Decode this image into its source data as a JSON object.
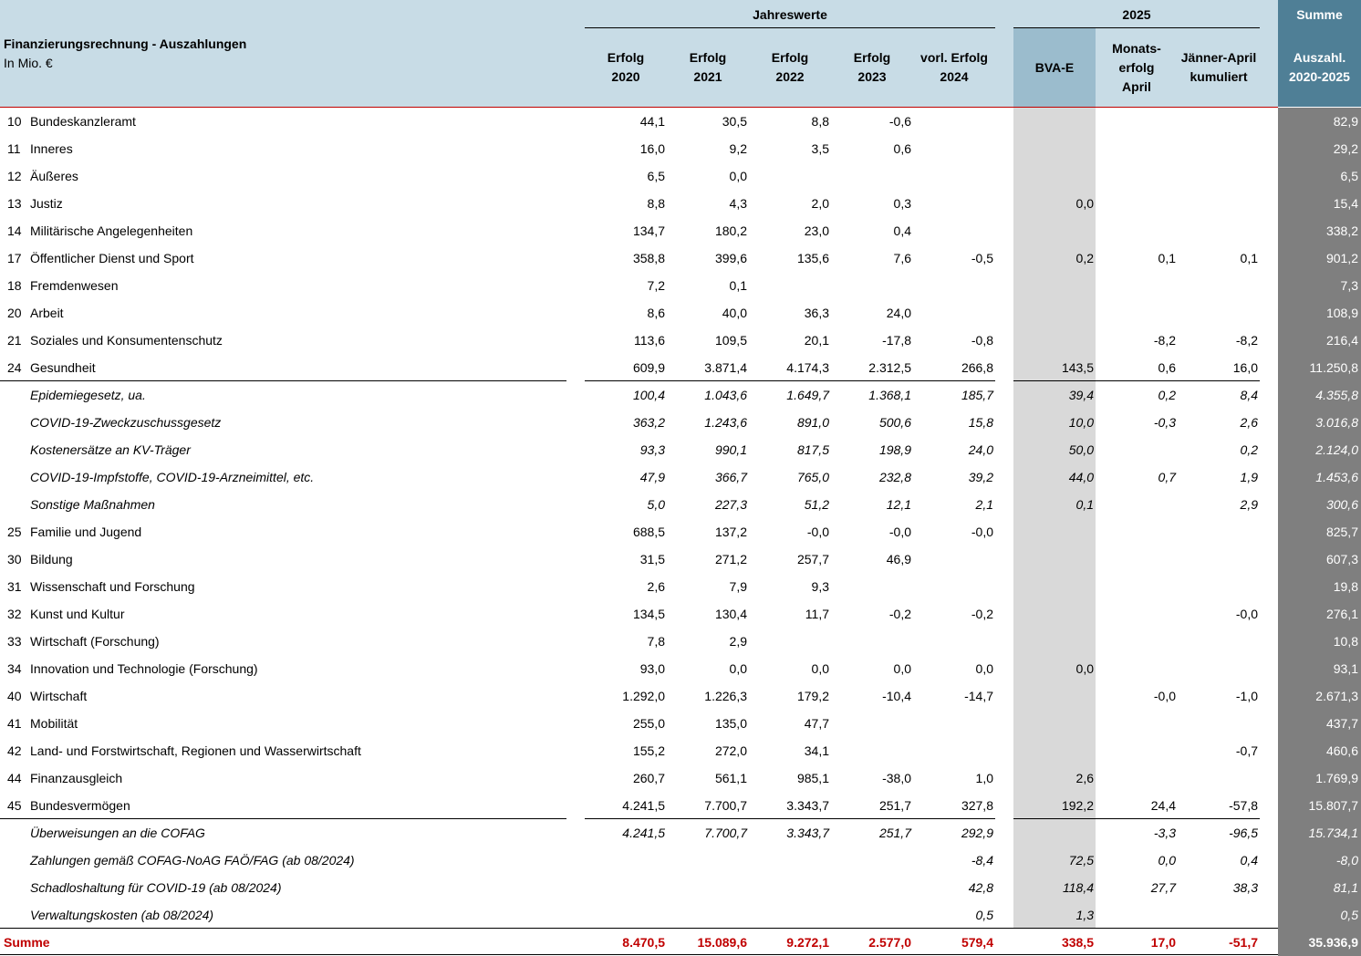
{
  "header": {
    "title": "Finanzierungsrechnung - Auszahlungen",
    "unit": "In Mio. €",
    "group_jahreswerte": "Jahreswerte",
    "group_2025": "2025",
    "group_summe": "Summe",
    "columns": [
      "Erfolg\n2020",
      "Erfolg\n2021",
      "Erfolg\n2022",
      "Erfolg\n2023",
      "vorl. Erfolg\n2024",
      "BVA-E",
      "Monats-\nerfolg\nApril",
      "Jänner-April\nkumuliert",
      "Auszahl.\n2020-2025"
    ]
  },
  "rows": [
    {
      "num": "10",
      "label": "Bundeskanzleramt",
      "values": [
        "44,1",
        "30,5",
        "8,8",
        "-0,6",
        "",
        "",
        "",
        "",
        "82,9"
      ]
    },
    {
      "num": "11",
      "label": "Inneres",
      "values": [
        "16,0",
        "9,2",
        "3,5",
        "0,6",
        "",
        "",
        "",
        "",
        "29,2"
      ]
    },
    {
      "num": "12",
      "label": "Äußeres",
      "values": [
        "6,5",
        "0,0",
        "",
        "",
        "",
        "",
        "",
        "",
        "6,5"
      ]
    },
    {
      "num": "13",
      "label": "Justiz",
      "values": [
        "8,8",
        "4,3",
        "2,0",
        "0,3",
        "",
        "0,0",
        "",
        "",
        "15,4"
      ]
    },
    {
      "num": "14",
      "label": "Militärische Angelegenheiten",
      "values": [
        "134,7",
        "180,2",
        "23,0",
        "0,4",
        "",
        "",
        "",
        "",
        "338,2"
      ]
    },
    {
      "num": "17",
      "label": "Öffentlicher Dienst und Sport",
      "values": [
        "358,8",
        "399,6",
        "135,6",
        "7,6",
        "-0,5",
        "0,2",
        "0,1",
        "0,1",
        "901,2"
      ]
    },
    {
      "num": "18",
      "label": "Fremdenwesen",
      "values": [
        "7,2",
        "0,1",
        "",
        "",
        "",
        "",
        "",
        "",
        "7,3"
      ]
    },
    {
      "num": "20",
      "label": "Arbeit",
      "values": [
        "8,6",
        "40,0",
        "36,3",
        "24,0",
        "",
        "",
        "",
        "",
        "108,9"
      ]
    },
    {
      "num": "21",
      "label": "Soziales und Konsumentenschutz",
      "values": [
        "113,6",
        "109,5",
        "20,1",
        "-17,8",
        "-0,8",
        "",
        "-8,2",
        "-8,2",
        "216,4"
      ]
    },
    {
      "num": "24",
      "label": "Gesundheit",
      "values": [
        "609,9",
        "3.871,4",
        "4.174,3",
        "2.312,5",
        "266,8",
        "143,5",
        "0,6",
        "16,0",
        "11.250,8"
      ]
    },
    {
      "num": "",
      "label": "Epidemiegesetz, ua.",
      "sub": true,
      "values": [
        "100,4",
        "1.043,6",
        "1.649,7",
        "1.368,1",
        "185,7",
        "39,4",
        "0,2",
        "8,4",
        "4.355,8"
      ]
    },
    {
      "num": "",
      "label": "COVID-19-Zweckzuschussgesetz",
      "sub": true,
      "values": [
        "363,2",
        "1.243,6",
        "891,0",
        "500,6",
        "15,8",
        "10,0",
        "-0,3",
        "2,6",
        "3.016,8"
      ]
    },
    {
      "num": "",
      "label": "Kostenersätze an KV-Träger",
      "sub": true,
      "values": [
        "93,3",
        "990,1",
        "817,5",
        "198,9",
        "24,0",
        "50,0",
        "",
        "0,2",
        "2.124,0"
      ]
    },
    {
      "num": "",
      "label": "COVID-19-Impfstoffe, COVID-19-Arzneimittel, etc.",
      "sub": true,
      "values": [
        "47,9",
        "366,7",
        "765,0",
        "232,8",
        "39,2",
        "44,0",
        "0,7",
        "1,9",
        "1.453,6"
      ]
    },
    {
      "num": "",
      "label": "Sonstige Maßnahmen",
      "sub": true,
      "values": [
        "5,0",
        "227,3",
        "51,2",
        "12,1",
        "2,1",
        "0,1",
        "",
        "2,9",
        "300,6"
      ]
    },
    {
      "num": "25",
      "label": "Familie und Jugend",
      "values": [
        "688,5",
        "137,2",
        "-0,0",
        "-0,0",
        "-0,0",
        "",
        "",
        "",
        "825,7"
      ]
    },
    {
      "num": "30",
      "label": "Bildung",
      "values": [
        "31,5",
        "271,2",
        "257,7",
        "46,9",
        "",
        "",
        "",
        "",
        "607,3"
      ]
    },
    {
      "num": "31",
      "label": "Wissenschaft und Forschung",
      "values": [
        "2,6",
        "7,9",
        "9,3",
        "",
        "",
        "",
        "",
        "",
        "19,8"
      ]
    },
    {
      "num": "32",
      "label": "Kunst und Kultur",
      "values": [
        "134,5",
        "130,4",
        "11,7",
        "-0,2",
        "-0,2",
        "",
        "",
        "-0,0",
        "276,1"
      ]
    },
    {
      "num": "33",
      "label": "Wirtschaft (Forschung)",
      "values": [
        "7,8",
        "2,9",
        "",
        "",
        "",
        "",
        "",
        "",
        "10,8"
      ]
    },
    {
      "num": "34",
      "label": "Innovation und Technologie (Forschung)",
      "values": [
        "93,0",
        "0,0",
        "0,0",
        "0,0",
        "0,0",
        "0,0",
        "",
        "",
        "93,1"
      ]
    },
    {
      "num": "40",
      "label": "Wirtschaft",
      "values": [
        "1.292,0",
        "1.226,3",
        "179,2",
        "-10,4",
        "-14,7",
        "",
        "-0,0",
        "-1,0",
        "2.671,3"
      ]
    },
    {
      "num": "41",
      "label": "Mobilität",
      "values": [
        "255,0",
        "135,0",
        "47,7",
        "",
        "",
        "",
        "",
        "",
        "437,7"
      ]
    },
    {
      "num": "42",
      "label": "Land- und Forstwirtschaft, Regionen und Wasserwirtschaft",
      "values": [
        "155,2",
        "272,0",
        "34,1",
        "",
        "",
        "",
        "",
        "-0,7",
        "460,6"
      ]
    },
    {
      "num": "44",
      "label": "Finanzausgleich",
      "values": [
        "260,7",
        "561,1",
        "985,1",
        "-38,0",
        "1,0",
        "2,6",
        "",
        "",
        "1.769,9"
      ]
    },
    {
      "num": "45",
      "label": "Bundesvermögen",
      "values": [
        "4.241,5",
        "7.700,7",
        "3.343,7",
        "251,7",
        "327,8",
        "192,2",
        "24,4",
        "-57,8",
        "15.807,7"
      ]
    },
    {
      "num": "",
      "label": "Überweisungen an die COFAG",
      "sub": true,
      "values": [
        "4.241,5",
        "7.700,7",
        "3.343,7",
        "251,7",
        "292,9",
        "",
        "-3,3",
        "-96,5",
        "15.734,1"
      ]
    },
    {
      "num": "",
      "label": "Zahlungen gemäß COFAG-NoAG FAÖ/FAG (ab 08/2024)",
      "sub": true,
      "values": [
        "",
        "",
        "",
        "",
        "-8,4",
        "72,5",
        "0,0",
        "0,4",
        "-8,0"
      ]
    },
    {
      "num": "",
      "label": "Schadloshaltung für COVID-19 (ab 08/2024)",
      "sub": true,
      "values": [
        "",
        "",
        "",
        "",
        "42,8",
        "118,4",
        "27,7",
        "38,3",
        "81,1"
      ]
    },
    {
      "num": "",
      "label": "Verwaltungskosten (ab 08/2024)",
      "sub": true,
      "values": [
        "",
        "",
        "",
        "",
        "0,5",
        "1,3",
        "",
        "",
        "0,5"
      ]
    },
    {
      "num": "",
      "label": "Summe",
      "total": true,
      "values": [
        "8.470,5",
        "15.089,6",
        "9.272,1",
        "2.577,0",
        "579,4",
        "338,5",
        "17,0",
        "-51,7",
        "35.936,9"
      ]
    }
  ]
}
